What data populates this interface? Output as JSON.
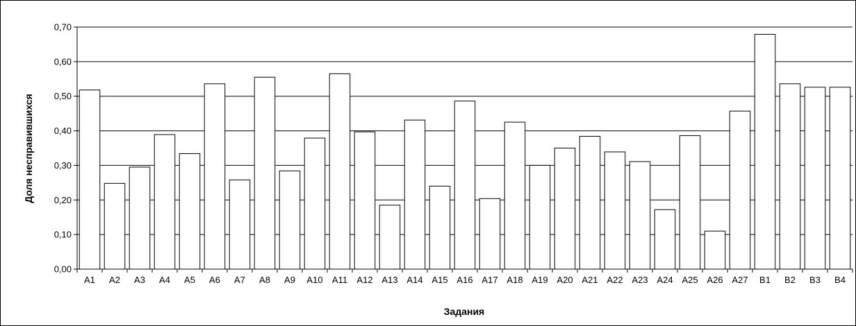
{
  "chart_data": {
    "type": "bar",
    "title": "",
    "xlabel": "Задания",
    "ylabel": "Доля несправившихся",
    "ylim": [
      0,
      0.7
    ],
    "yticks": [
      "0,00",
      "0,10",
      "0,20",
      "0,30",
      "0,40",
      "0,50",
      "0,60",
      "0,70"
    ],
    "grid": true,
    "legend": "none",
    "categories": [
      "A1",
      "A2",
      "A3",
      "A4",
      "A5",
      "A6",
      "A7",
      "A8",
      "A9",
      "A10",
      "A11",
      "A12",
      "A13",
      "A14",
      "A15",
      "A16",
      "A17",
      "A18",
      "A19",
      "A20",
      "A21",
      "A22",
      "A23",
      "A24",
      "A25",
      "A26",
      "A27",
      "B1",
      "B2",
      "B3",
      "B4"
    ],
    "values": [
      0.518,
      0.248,
      0.295,
      0.389,
      0.334,
      0.536,
      0.258,
      0.555,
      0.284,
      0.379,
      0.565,
      0.397,
      0.185,
      0.431,
      0.24,
      0.486,
      0.204,
      0.425,
      0.3,
      0.35,
      0.384,
      0.339,
      0.311,
      0.172,
      0.386,
      0.11,
      0.457,
      0.679,
      0.536,
      0.526,
      0.526
    ]
  },
  "colors": {
    "bar_fill": "#ffffff",
    "bar_stroke": "#000000",
    "grid": "#000000",
    "background": "#ffffff"
  }
}
